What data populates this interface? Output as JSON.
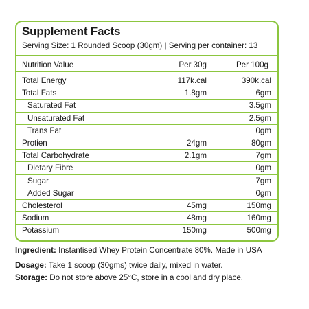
{
  "panel": {
    "title": "Supplement Facts",
    "serving": "Serving Size: 1 Rounded Scoop (30gm)  |   Serving per container: 13",
    "header": {
      "name": "Nutrition Value",
      "per30": "Per 30g",
      "per100": "Per 100g"
    },
    "rows": [
      {
        "name": "Total Energy",
        "per30": "117k.cal",
        "per100": "390k.cal",
        "sub": false
      },
      {
        "name": "Total Fats",
        "per30": "1.8gm",
        "per100": "6gm",
        "sub": false
      },
      {
        "name": "Saturated Fat",
        "per30": "",
        "per100": "3.5gm",
        "sub": true
      },
      {
        "name": "Unsaturated Fat",
        "per30": "",
        "per100": "2.5gm",
        "sub": true
      },
      {
        "name": "Trans Fat",
        "per30": "",
        "per100": "0gm",
        "sub": true
      },
      {
        "name": "Protien",
        "per30": "24gm",
        "per100": "80gm",
        "sub": false
      },
      {
        "name": "Total Carbohydrate",
        "per30": "2.1gm",
        "per100": "7gm",
        "sub": false
      },
      {
        "name": "Dietary Fibre",
        "per30": "",
        "per100": "0gm",
        "sub": true
      },
      {
        "name": "Sugar",
        "per30": "",
        "per100": "7gm",
        "sub": true
      },
      {
        "name": "Added Sugar",
        "per30": "",
        "per100": "0gm",
        "sub": true
      },
      {
        "name": "Cholesterol",
        "per30": "45mg",
        "per100": "150mg",
        "sub": false
      },
      {
        "name": "Sodium",
        "per30": "48mg",
        "per100": "160mg",
        "sub": false
      },
      {
        "name": "Potassium",
        "per30": "150mg",
        "per100": "500mg",
        "sub": false
      }
    ]
  },
  "notes": {
    "ingredient_label": "Ingredient:",
    "ingredient_text": " Instantised Whey Protein Concentrate 80%. Made in USA",
    "dosage_label": "Dosage:",
    "dosage_text": " Take 1 scoop (30gms) twice daily, mixed in water.",
    "storage_label": "Storage:",
    "storage_text": " Do not store above 25°C, store in a cool and dry place."
  },
  "colors": {
    "border": "#8cc63f",
    "text": "#1a1a1a"
  }
}
